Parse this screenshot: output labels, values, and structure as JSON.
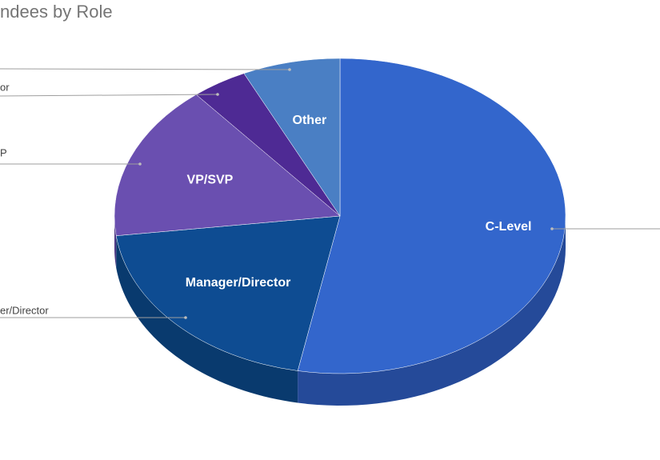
{
  "chart_data": {
    "type": "pie3d",
    "title": "ndees by Role",
    "categories": [
      "C-Level",
      "Manager/Director",
      "VP/SVP",
      null,
      "Other"
    ],
    "values": [
      53,
      20,
      16,
      4,
      7
    ],
    "colors": [
      "#3366cc",
      "#0e4c92",
      "#6a4fb0",
      "#4e2a94",
      "#4a7fc4"
    ],
    "side_colors": [
      "#254a99",
      "#093a6e",
      "#4e3a85",
      "#3a1f70",
      "#365f94"
    ],
    "callout_labels": [
      "er/Director",
      "P",
      "or"
    ]
  }
}
